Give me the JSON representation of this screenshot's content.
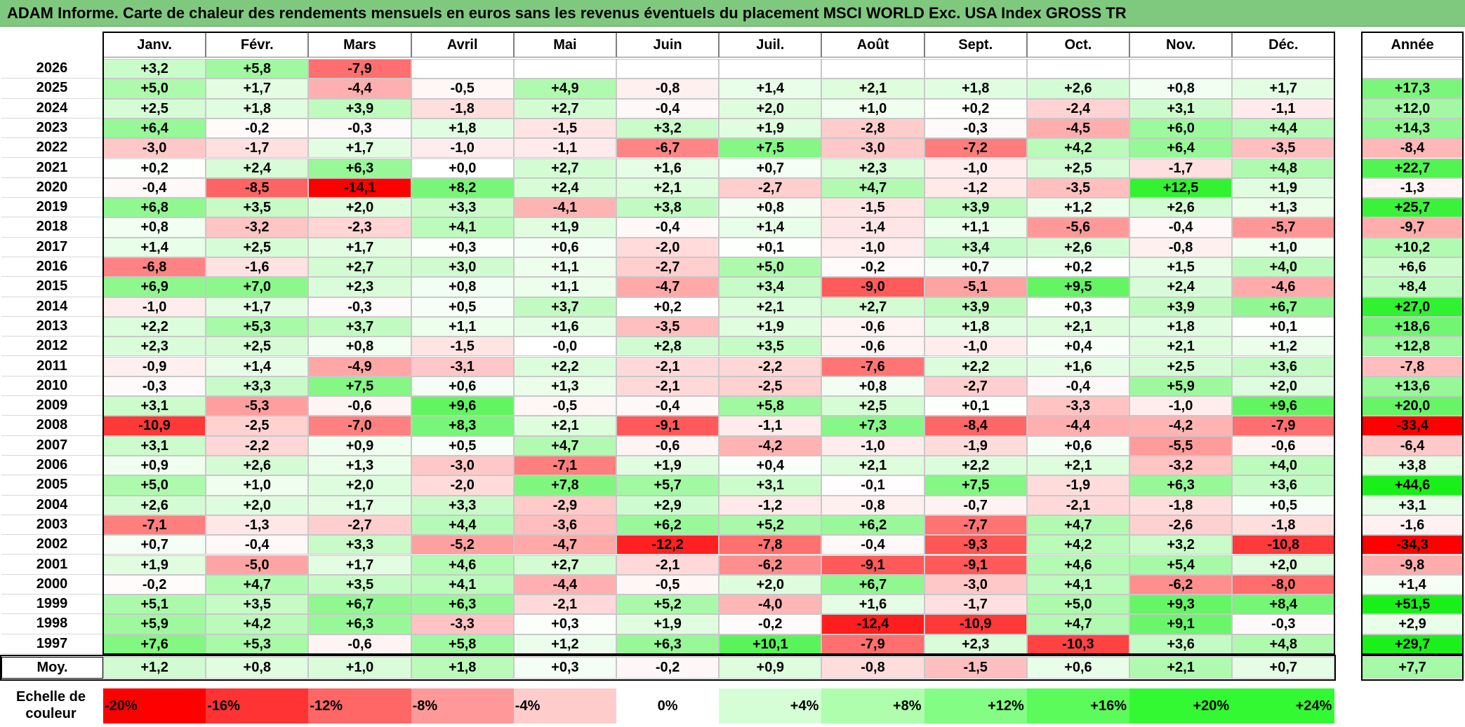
{
  "title": "ADAM Informe. Carte de chaleur des rendements mensuels en euros sans les revenus éventuels du placement MSCI WORLD Exc. USA Index GROSS TR",
  "chart_data": {
    "type": "heatmap",
    "title": "ADAM Informe. Carte de chaleur des rendements mensuels en euros sans les revenus éventuels du placement MSCI WORLD Exc. USA Index GROSS TR",
    "columns": [
      "Janv.",
      "Févr.",
      "Mars",
      "Avril",
      "Mai",
      "Juin",
      "Juil.",
      "Août",
      "Sept.",
      "Oct.",
      "Nov.",
      "Déc."
    ],
    "year_column_label": "Année",
    "rows": [
      {
        "year": "2026",
        "months": [
          "+3,2",
          "+5,8",
          "-7,9",
          "",
          "",
          "",
          "",
          "",
          "",
          "",
          "",
          ""
        ],
        "annual": ""
      },
      {
        "year": "2025",
        "months": [
          "+5,0",
          "+1,7",
          "-4,4",
          "-0,5",
          "+4,9",
          "-0,8",
          "+1,4",
          "+2,1",
          "+1,8",
          "+2,6",
          "+0,8",
          "+1,7"
        ],
        "annual": "+17,3"
      },
      {
        "year": "2024",
        "months": [
          "+2,5",
          "+1,8",
          "+3,9",
          "-1,8",
          "+2,7",
          "-0,4",
          "+2,0",
          "+1,0",
          "+0,2",
          "-2,4",
          "+3,1",
          "-1,1"
        ],
        "annual": "+12,0"
      },
      {
        "year": "2023",
        "months": [
          "+6,4",
          "-0,2",
          "-0,3",
          "+1,8",
          "-1,5",
          "+3,2",
          "+1,9",
          "-2,8",
          "-0,3",
          "-4,5",
          "+6,0",
          "+4,4"
        ],
        "annual": "+14,3"
      },
      {
        "year": "2022",
        "months": [
          "-3,0",
          "-1,7",
          "+1,7",
          "-1,0",
          "-1,1",
          "-6,7",
          "+7,5",
          "-3,0",
          "-7,2",
          "+4,2",
          "+6,4",
          "-3,5"
        ],
        "annual": "-8,4"
      },
      {
        "year": "2021",
        "months": [
          "+0,2",
          "+2,4",
          "+6,3",
          "+0,0",
          "+2,7",
          "+1,6",
          "+0,7",
          "+2,3",
          "-1,0",
          "+2,5",
          "-1,7",
          "+4,8"
        ],
        "annual": "+22,7"
      },
      {
        "year": "2020",
        "months": [
          "-0,4",
          "-8,5",
          "-14,1",
          "+8,2",
          "+2,4",
          "+2,1",
          "-2,7",
          "+4,7",
          "-1,2",
          "-3,5",
          "+12,5",
          "+1,9"
        ],
        "annual": "-1,3"
      },
      {
        "year": "2019",
        "months": [
          "+6,8",
          "+3,5",
          "+2,0",
          "+3,3",
          "-4,1",
          "+3,8",
          "+0,8",
          "-1,5",
          "+3,9",
          "+1,2",
          "+2,6",
          "+1,3"
        ],
        "annual": "+25,7"
      },
      {
        "year": "2018",
        "months": [
          "+0,8",
          "-3,2",
          "-2,3",
          "+4,1",
          "+1,9",
          "-0,4",
          "+1,4",
          "-1,4",
          "+1,1",
          "-5,6",
          "-0,4",
          "-5,7"
        ],
        "annual": "-9,7"
      },
      {
        "year": "2017",
        "months": [
          "+1,4",
          "+2,5",
          "+1,7",
          "+0,3",
          "+0,6",
          "-2,0",
          "+0,1",
          "-1,0",
          "+3,4",
          "+2,6",
          "-0,8",
          "+1,0"
        ],
        "annual": "+10,2"
      },
      {
        "year": "2016",
        "months": [
          "-6,8",
          "-1,6",
          "+2,7",
          "+3,0",
          "+1,1",
          "-2,7",
          "+5,0",
          "-0,2",
          "+0,7",
          "+0,2",
          "+1,5",
          "+4,0"
        ],
        "annual": "+6,6"
      },
      {
        "year": "2015",
        "months": [
          "+6,9",
          "+7,0",
          "+2,3",
          "+0,8",
          "+1,1",
          "-4,7",
          "+3,4",
          "-9,0",
          "-5,1",
          "+9,5",
          "+2,4",
          "-4,6"
        ],
        "annual": "+8,4"
      },
      {
        "year": "2014",
        "months": [
          "-1,0",
          "+1,7",
          "-0,3",
          "+0,5",
          "+3,7",
          "+0,2",
          "+2,1",
          "+2,7",
          "+3,9",
          "+0,3",
          "+3,9",
          "+6,7"
        ],
        "annual": "+27,0"
      },
      {
        "year": "2013",
        "months": [
          "+2,2",
          "+5,3",
          "+3,7",
          "+1,1",
          "+1,6",
          "-3,5",
          "+1,9",
          "-0,6",
          "+1,8",
          "+2,1",
          "+1,8",
          "+0,1"
        ],
        "annual": "+18,6"
      },
      {
        "year": "2012",
        "months": [
          "+2,3",
          "+2,5",
          "+0,8",
          "-1,5",
          "-0,0",
          "+2,8",
          "+3,5",
          "-0,6",
          "-1,0",
          "+0,4",
          "+2,1",
          "+1,2"
        ],
        "annual": "+12,8"
      },
      {
        "year": "2011",
        "months": [
          "-0,9",
          "+1,4",
          "-4,9",
          "-3,1",
          "+2,2",
          "-2,1",
          "-2,2",
          "-7,6",
          "+2,2",
          "+1,6",
          "+2,5",
          "+3,6"
        ],
        "annual": "-7,8"
      },
      {
        "year": "2010",
        "months": [
          "-0,3",
          "+3,3",
          "+7,5",
          "+0,6",
          "+1,3",
          "-2,1",
          "-2,5",
          "+0,8",
          "-2,7",
          "-0,4",
          "+5,9",
          "+2,0"
        ],
        "annual": "+13,6"
      },
      {
        "year": "2009",
        "months": [
          "+3,1",
          "-5,3",
          "-0,6",
          "+9,6",
          "-0,5",
          "-0,4",
          "+5,8",
          "+2,5",
          "+0,1",
          "-3,3",
          "-1,0",
          "+9,6"
        ],
        "annual": "+20,0"
      },
      {
        "year": "2008",
        "months": [
          "-10,9",
          "-2,5",
          "-7,0",
          "+8,3",
          "+2,1",
          "-9,1",
          "-1,1",
          "+7,3",
          "-8,4",
          "-4,4",
          "-4,2",
          "-7,9"
        ],
        "annual": "-33,4"
      },
      {
        "year": "2007",
        "months": [
          "+3,1",
          "-2,2",
          "+0,9",
          "+0,5",
          "+4,7",
          "-0,6",
          "-4,2",
          "-1,0",
          "-1,9",
          "+0,6",
          "-5,5",
          "-0,6"
        ],
        "annual": "-6,4"
      },
      {
        "year": "2006",
        "months": [
          "+0,9",
          "+2,6",
          "+1,3",
          "-3,0",
          "-7,1",
          "+1,9",
          "+0,4",
          "+2,1",
          "+2,2",
          "+2,1",
          "-3,2",
          "+4,0"
        ],
        "annual": "+3,8"
      },
      {
        "year": "2005",
        "months": [
          "+5,0",
          "+1,0",
          "+2,0",
          "-2,0",
          "+7,8",
          "+5,7",
          "+3,1",
          "-0,1",
          "+7,5",
          "-1,9",
          "+6,3",
          "+3,6"
        ],
        "annual": "+44,6"
      },
      {
        "year": "2004",
        "months": [
          "+2,6",
          "+2,0",
          "+1,7",
          "+3,3",
          "-2,9",
          "+2,9",
          "-1,2",
          "-0,8",
          "-0,7",
          "-2,1",
          "-1,8",
          "+0,5"
        ],
        "annual": "+3,1"
      },
      {
        "year": "2003",
        "months": [
          "-7,1",
          "-1,3",
          "-2,7",
          "+4,4",
          "-3,6",
          "+6,2",
          "+5,2",
          "+6,2",
          "-7,7",
          "+4,7",
          "-2,6",
          "-1,8"
        ],
        "annual": "-1,6"
      },
      {
        "year": "2002",
        "months": [
          "+0,7",
          "-0,4",
          "+3,3",
          "-5,2",
          "-4,7",
          "-12,2",
          "-7,8",
          "-0,4",
          "-9,3",
          "+4,2",
          "+3,2",
          "-10,8"
        ],
        "annual": "-34,3"
      },
      {
        "year": "2001",
        "months": [
          "+1,9",
          "-5,0",
          "+1,7",
          "+4,6",
          "+2,7",
          "-2,1",
          "-6,2",
          "-9,1",
          "-9,1",
          "+4,6",
          "+5,4",
          "+2,0"
        ],
        "annual": "-9,8"
      },
      {
        "year": "2000",
        "months": [
          "-0,2",
          "+4,7",
          "+3,5",
          "+4,1",
          "-4,4",
          "-0,5",
          "+2,0",
          "+6,7",
          "-3,0",
          "+4,1",
          "-6,2",
          "-8,0"
        ],
        "annual": "+1,4"
      },
      {
        "year": "1999",
        "months": [
          "+5,1",
          "+3,5",
          "+6,7",
          "+6,3",
          "-2,1",
          "+5,2",
          "-4,0",
          "+1,6",
          "-1,7",
          "+5,0",
          "+9,3",
          "+8,4"
        ],
        "annual": "+51,5"
      },
      {
        "year": "1998",
        "months": [
          "+5,9",
          "+4,2",
          "+6,3",
          "-3,3",
          "+0,3",
          "+1,9",
          "-0,2",
          "-12,4",
          "-10,9",
          "+4,7",
          "+9,1",
          "-0,3"
        ],
        "annual": "+2,9"
      },
      {
        "year": "1997",
        "months": [
          "+7,6",
          "+5,3",
          "-0,6",
          "+5,8",
          "+1,2",
          "+6,3",
          "+10,1",
          "-7,9",
          "+2,3",
          "-10,3",
          "+3,6",
          "+4,8"
        ],
        "annual": "+29,7"
      }
    ],
    "average": {
      "label": "Moy.",
      "months": [
        "+1,2",
        "+0,8",
        "+1,0",
        "+1,8",
        "+0,3",
        "-0,2",
        "+0,9",
        "-0,8",
        "-1,5",
        "+0,6",
        "+2,1",
        "+0,7"
      ],
      "annual": "+7,7"
    },
    "legend": {
      "label": "Echelle de couleur",
      "items": [
        {
          "text": "-20%",
          "value": -20,
          "color": "#ff0000"
        },
        {
          "text": "-16%",
          "value": -16,
          "color": "#ff3333"
        },
        {
          "text": "-12%",
          "value": -12,
          "color": "#ff6666"
        },
        {
          "text": "-8%",
          "value": -8,
          "color": "#ff9999"
        },
        {
          "text": "-4%",
          "value": -4,
          "color": "#ffcccc"
        },
        {
          "text": "0%",
          "value": 0,
          "color": "#ffffff"
        },
        {
          "text": "+4%",
          "value": 4,
          "color": "#d6fed6"
        },
        {
          "text": "+8%",
          "value": 8,
          "color": "#aefeae"
        },
        {
          "text": "+12%",
          "value": 12,
          "color": "#84fd84"
        },
        {
          "text": "+16%",
          "value": 16,
          "color": "#5bfb5b"
        },
        {
          "text": "+20%",
          "value": 20,
          "color": "#32f932"
        },
        {
          "text": "+24%",
          "value": 24,
          "color": "#32f932"
        }
      ]
    },
    "color_scale": {
      "negative_full": "#ff0000",
      "zero": "#ffffff",
      "positive_full": "#19f019",
      "monthly_max": 14,
      "annual_max": 30
    }
  }
}
